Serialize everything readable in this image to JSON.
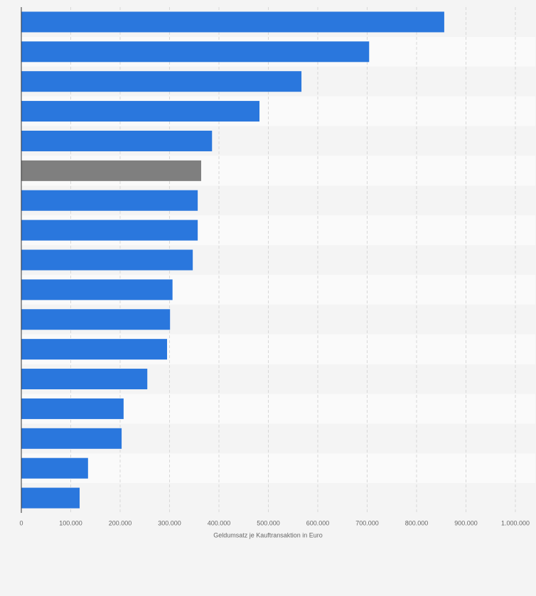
{
  "chart_data": {
    "type": "bar",
    "orientation": "horizontal",
    "x_label": "Geldumsatz je Kauftransaktion in Euro",
    "categories": [
      null,
      null,
      null,
      null,
      null,
      null,
      null,
      null,
      null,
      null,
      null,
      null,
      null,
      null,
      null,
      null,
      null
    ],
    "values": [
      856000,
      704000,
      567000,
      482000,
      386000,
      364000,
      357000,
      357000,
      347000,
      306000,
      301000,
      295000,
      255000,
      207000,
      203000,
      135000,
      118000
    ],
    "colors": [
      "#2a77dd",
      "#2a77dd",
      "#2a77dd",
      "#2a77dd",
      "#2a77dd",
      "#7f7f7f",
      "#2a77dd",
      "#2a77dd",
      "#2a77dd",
      "#2a77dd",
      "#2a77dd",
      "#2a77dd",
      "#2a77dd",
      "#2a77dd",
      "#2a77dd",
      "#2a77dd",
      "#2a77dd"
    ],
    "xlim": [
      0,
      1000000
    ],
    "xticks": [
      0,
      {
        "value": 100000,
        "label": "100.000"
      },
      {
        "value": 200000,
        "label": "200.000"
      },
      {
        "value": 300000,
        "label": "300.000"
      },
      {
        "value": 400000,
        "label": "400.000"
      },
      {
        "value": 500000,
        "label": "500.000"
      },
      {
        "value": 600000,
        "label": "600.000"
      },
      {
        "value": 700000,
        "label": "700.000"
      },
      {
        "value": 800000,
        "label": "800.000"
      },
      {
        "value": 900000,
        "label": "900.000"
      },
      {
        "value": 1000000,
        "label": "1.000.000"
      }
    ],
    "grid": true
  }
}
